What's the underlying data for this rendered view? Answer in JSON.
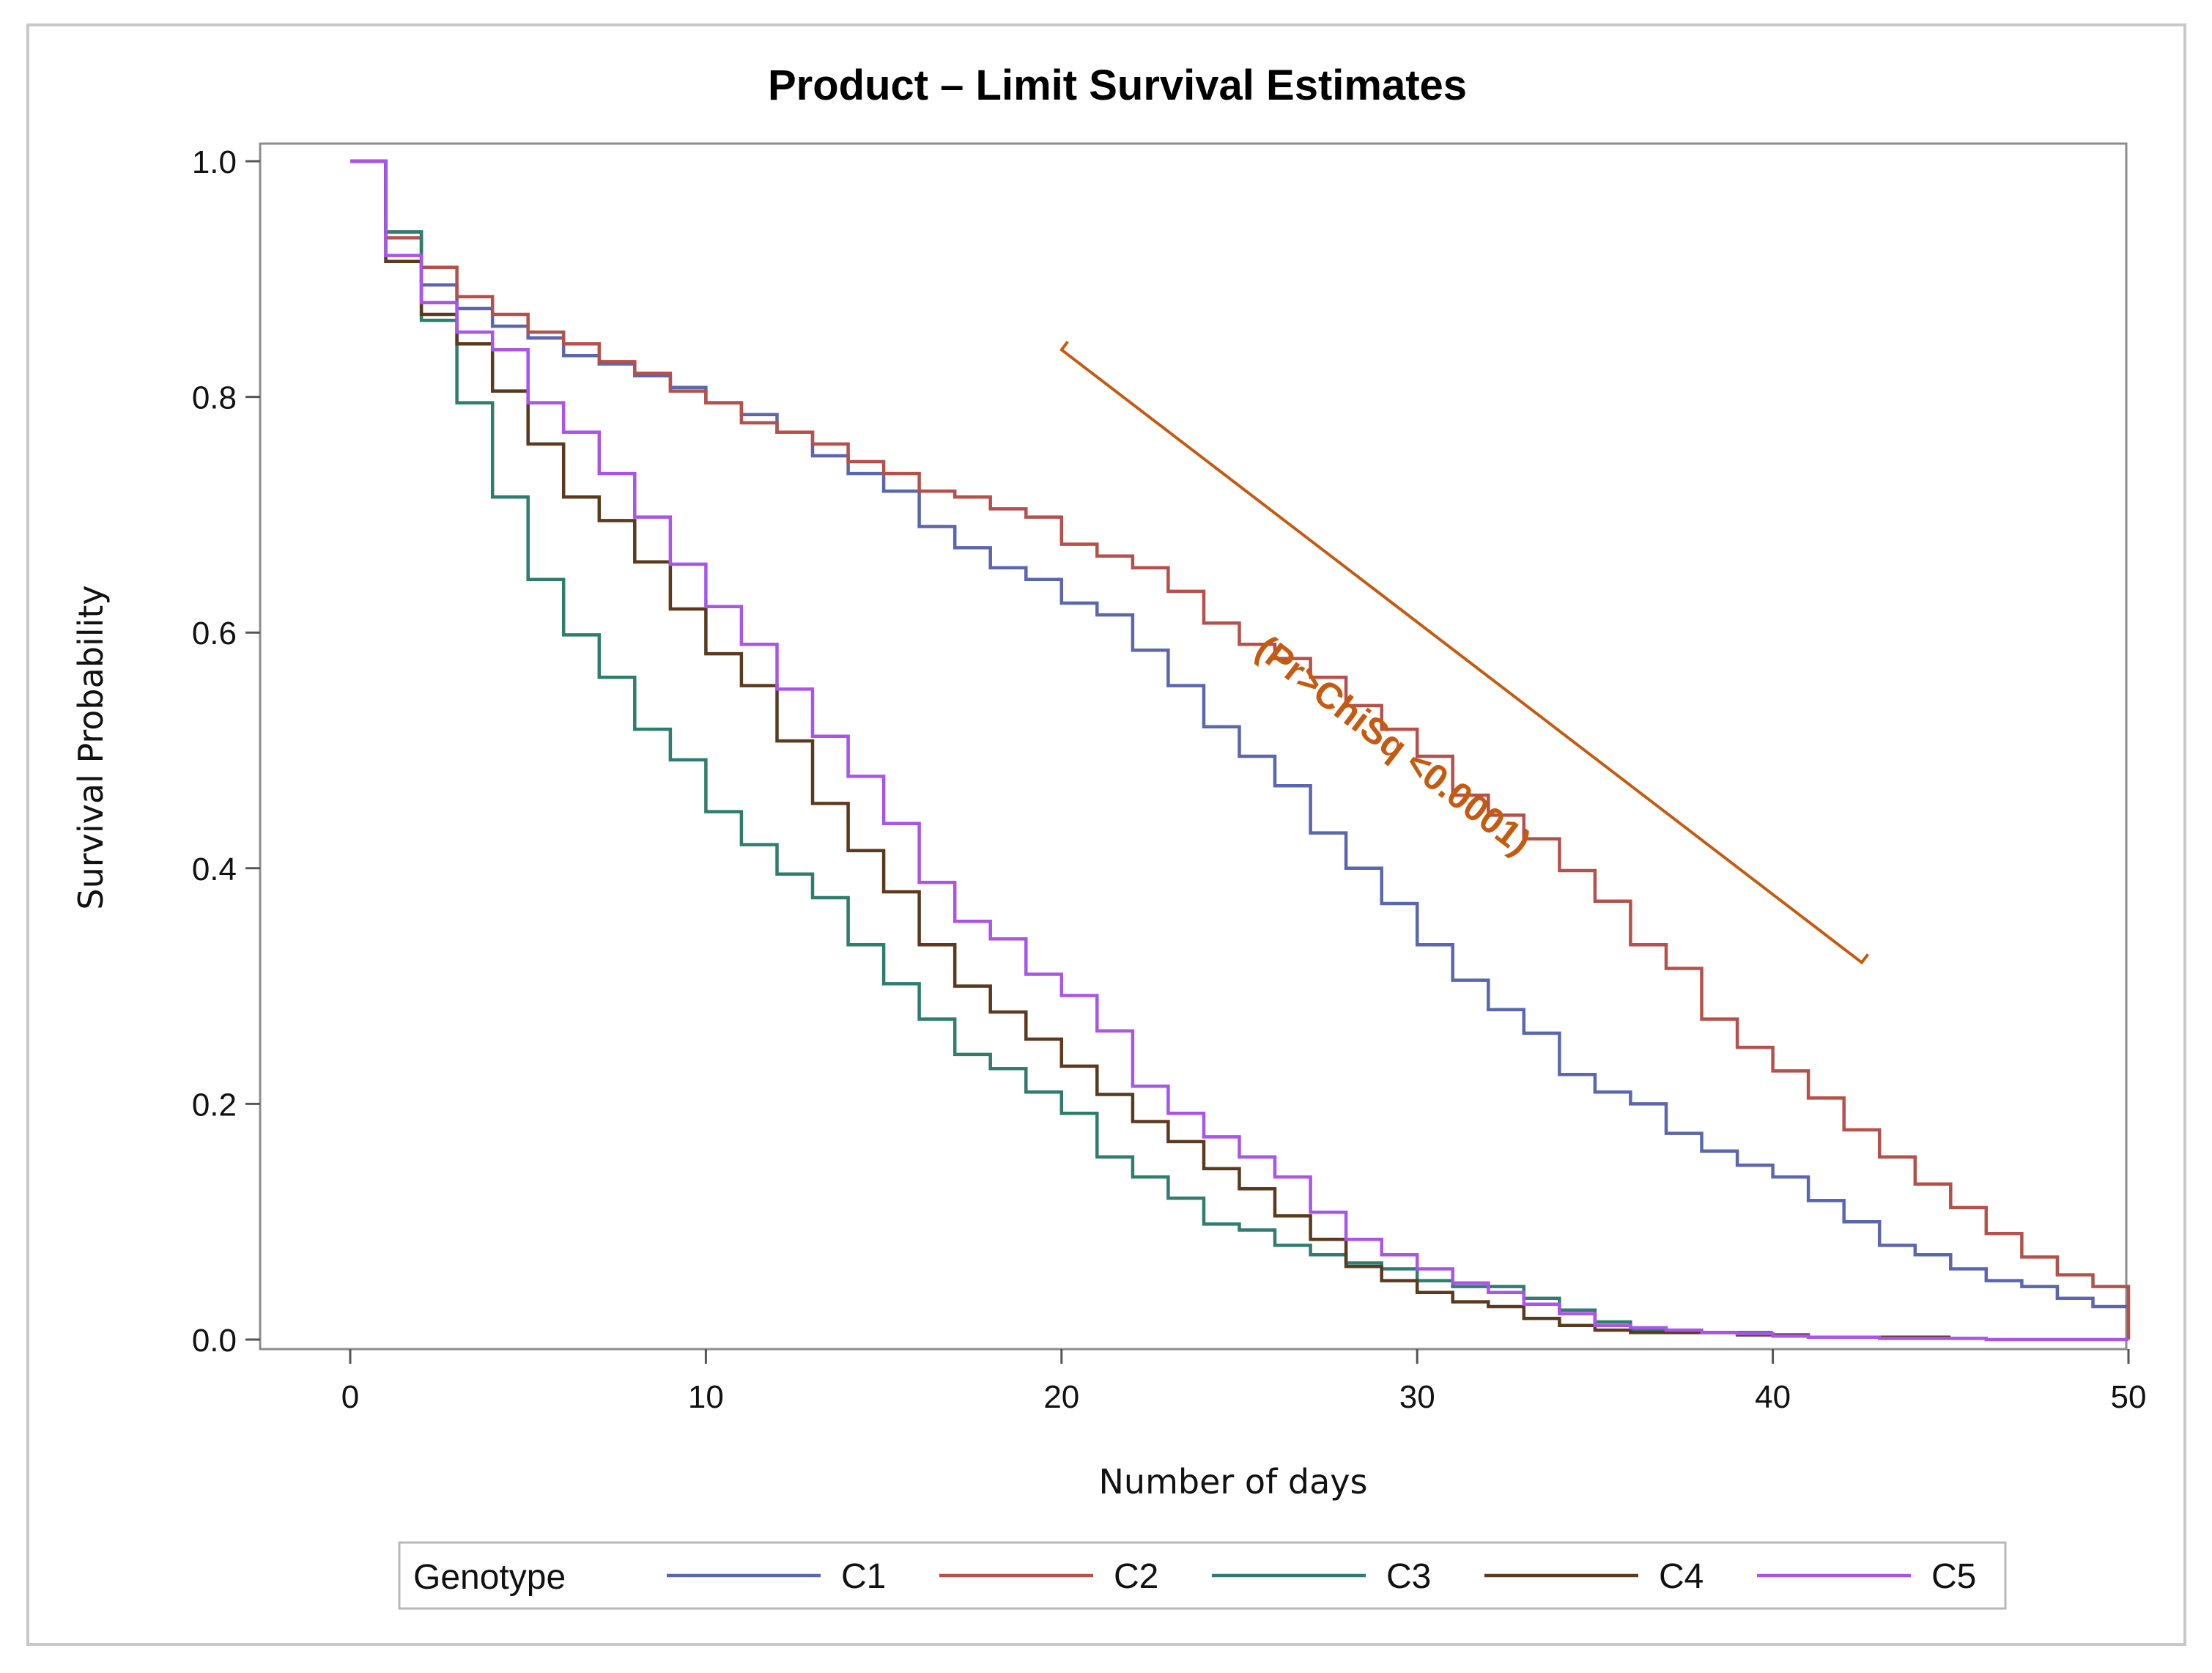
{
  "chart_data": {
    "type": "line",
    "step": true,
    "title": "Product – Limit Survival Estimates",
    "xlabel": "Number of days",
    "ylabel": "Survival Probability",
    "xlim": [
      0,
      50
    ],
    "ylim": [
      0,
      1
    ],
    "x_ticks": [
      0,
      10,
      20,
      30,
      40,
      50
    ],
    "x_tick_labels": [
      "0",
      "10",
      "20",
      "30",
      "40",
      "50"
    ],
    "y_ticks": [
      0,
      0.2,
      0.4,
      0.6,
      0.8,
      1.0
    ],
    "y_tick_labels": [
      "0.0",
      "0.2",
      "0.4",
      "0.6",
      "0.8",
      "1.0"
    ],
    "grid": false,
    "legend": {
      "title": "Genotype",
      "placement": "bottom"
    },
    "annotation": {
      "text": "(Pr>ChiSq <0.0001)",
      "color": "#c55a11",
      "from": [
        20,
        0.84
      ],
      "to": [
        42.5,
        0.32
      ]
    },
    "series": [
      {
        "name": "C1",
        "color": "#5a66ae",
        "x": [
          0,
          1,
          2,
          3,
          4,
          5,
          6,
          7,
          8,
          9,
          10,
          11,
          12,
          13,
          14,
          15,
          16,
          17,
          18,
          19,
          20,
          21,
          22,
          23,
          24,
          25,
          26,
          27,
          28,
          29,
          30,
          31,
          32,
          33,
          34,
          35,
          36,
          37,
          38,
          39,
          40,
          41,
          42,
          43,
          44,
          45,
          46,
          47,
          48,
          49,
          50
        ],
        "y": [
          1.0,
          0.94,
          0.895,
          0.875,
          0.86,
          0.85,
          0.835,
          0.828,
          0.818,
          0.808,
          0.795,
          0.785,
          0.77,
          0.75,
          0.735,
          0.72,
          0.69,
          0.672,
          0.655,
          0.645,
          0.625,
          0.615,
          0.585,
          0.555,
          0.52,
          0.495,
          0.47,
          0.43,
          0.4,
          0.37,
          0.335,
          0.305,
          0.28,
          0.26,
          0.225,
          0.21,
          0.2,
          0.175,
          0.16,
          0.148,
          0.138,
          0.118,
          0.1,
          0.08,
          0.072,
          0.06,
          0.05,
          0.045,
          0.035,
          0.028,
          0.028
        ]
      },
      {
        "name": "C2",
        "color": "#b5504b",
        "x": [
          0,
          1,
          2,
          3,
          4,
          5,
          6,
          7,
          8,
          9,
          10,
          11,
          12,
          13,
          14,
          15,
          16,
          17,
          18,
          19,
          20,
          21,
          22,
          23,
          24,
          25,
          26,
          27,
          28,
          29,
          30,
          31,
          32,
          33,
          34,
          35,
          36,
          37,
          38,
          39,
          40,
          41,
          42,
          43,
          44,
          45,
          46,
          47,
          48,
          49,
          50
        ],
        "y": [
          1.0,
          0.935,
          0.91,
          0.885,
          0.87,
          0.855,
          0.845,
          0.83,
          0.82,
          0.805,
          0.795,
          0.778,
          0.77,
          0.76,
          0.745,
          0.735,
          0.72,
          0.715,
          0.705,
          0.698,
          0.675,
          0.665,
          0.655,
          0.635,
          0.608,
          0.59,
          0.578,
          0.562,
          0.538,
          0.518,
          0.495,
          0.462,
          0.445,
          0.425,
          0.398,
          0.372,
          0.335,
          0.315,
          0.272,
          0.248,
          0.228,
          0.205,
          0.178,
          0.155,
          0.132,
          0.112,
          0.09,
          0.07,
          0.055,
          0.045,
          0.0
        ]
      },
      {
        "name": "C3",
        "color": "#2e7d6e",
        "x": [
          0,
          1,
          2,
          3,
          4,
          5,
          6,
          7,
          8,
          9,
          10,
          11,
          12,
          13,
          14,
          15,
          16,
          17,
          18,
          19,
          20,
          21,
          22,
          23,
          24,
          25,
          26,
          27,
          28,
          29,
          30,
          31,
          32,
          33,
          34,
          35,
          36,
          37,
          38,
          39,
          40
        ],
        "y": [
          1.0,
          0.94,
          0.865,
          0.795,
          0.715,
          0.645,
          0.598,
          0.562,
          0.518,
          0.492,
          0.448,
          0.42,
          0.395,
          0.375,
          0.335,
          0.302,
          0.272,
          0.242,
          0.23,
          0.21,
          0.192,
          0.155,
          0.138,
          0.12,
          0.098,
          0.093,
          0.08,
          0.072,
          0.065,
          0.06,
          0.05,
          0.045,
          0.045,
          0.035,
          0.025,
          0.015,
          0.008,
          0.006,
          0.006,
          0.006,
          0.006
        ]
      },
      {
        "name": "C4",
        "color": "#5b3a1e",
        "x": [
          0,
          1,
          2,
          3,
          4,
          5,
          6,
          7,
          8,
          9,
          10,
          11,
          12,
          13,
          14,
          15,
          16,
          17,
          18,
          19,
          20,
          21,
          22,
          23,
          24,
          25,
          26,
          27,
          28,
          29,
          30,
          31,
          32,
          33,
          34,
          35,
          36,
          37,
          38,
          39,
          40,
          41,
          42,
          43,
          44,
          45
        ],
        "y": [
          1.0,
          0.915,
          0.87,
          0.845,
          0.805,
          0.76,
          0.715,
          0.695,
          0.66,
          0.62,
          0.582,
          0.555,
          0.508,
          0.455,
          0.415,
          0.38,
          0.335,
          0.3,
          0.278,
          0.255,
          0.232,
          0.208,
          0.185,
          0.168,
          0.145,
          0.128,
          0.105,
          0.085,
          0.062,
          0.05,
          0.04,
          0.032,
          0.028,
          0.018,
          0.012,
          0.008,
          0.006,
          0.006,
          0.006,
          0.004,
          0.004,
          0.002,
          0.002,
          0.002,
          0.002,
          0.002
        ]
      },
      {
        "name": "C5",
        "color": "#a855e8",
        "x": [
          0,
          1,
          2,
          3,
          4,
          5,
          6,
          7,
          8,
          9,
          10,
          11,
          12,
          13,
          14,
          15,
          16,
          17,
          18,
          19,
          20,
          21,
          22,
          23,
          24,
          25,
          26,
          27,
          28,
          29,
          30,
          31,
          32,
          33,
          34,
          35,
          36,
          37,
          38,
          39,
          40,
          41,
          42,
          43,
          44,
          45,
          46,
          47,
          48,
          49,
          50
        ],
        "y": [
          1.0,
          0.92,
          0.88,
          0.855,
          0.84,
          0.795,
          0.77,
          0.735,
          0.698,
          0.658,
          0.622,
          0.59,
          0.552,
          0.512,
          0.478,
          0.438,
          0.388,
          0.355,
          0.34,
          0.31,
          0.292,
          0.262,
          0.215,
          0.192,
          0.172,
          0.155,
          0.138,
          0.108,
          0.085,
          0.072,
          0.06,
          0.048,
          0.04,
          0.03,
          0.022,
          0.012,
          0.01,
          0.008,
          0.006,
          0.005,
          0.003,
          0.002,
          0.002,
          0.001,
          0.001,
          0.001,
          0.0,
          0.0,
          0.0,
          0.0,
          0.0
        ]
      }
    ]
  }
}
